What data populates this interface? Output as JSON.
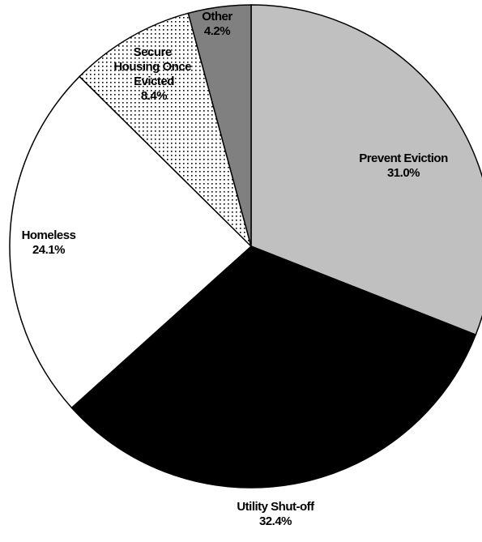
{
  "chart_data": {
    "type": "pie",
    "categories": [
      "Prevent Eviction",
      "Utility Shut-off",
      "Homeless",
      "Secure Housing Once Evicted",
      "Other"
    ],
    "values": [
      31.0,
      32.4,
      24.1,
      8.4,
      4.2
    ],
    "value_labels": [
      "31.0%",
      "32.4%",
      "24.1%",
      "8.4%",
      "4.2%"
    ],
    "colors": [
      "#c0c0c0",
      "#000000",
      "#ffffff",
      "dots",
      "#808080"
    ]
  }
}
